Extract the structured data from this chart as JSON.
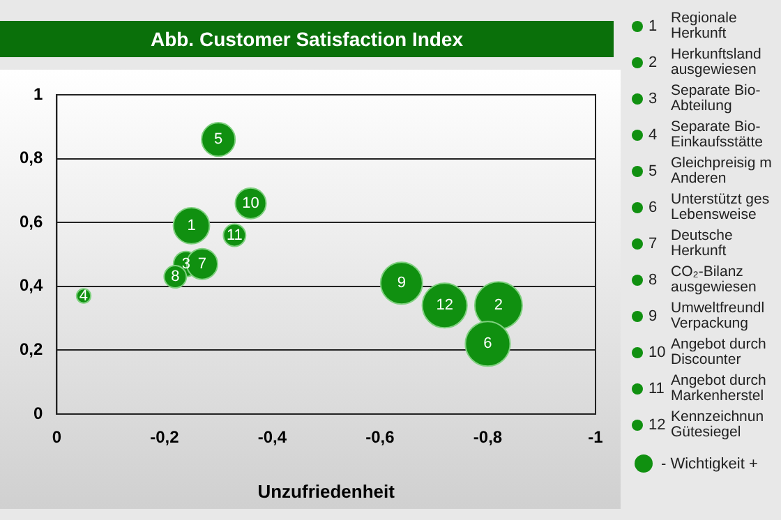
{
  "chart_data": {
    "type": "bubble",
    "title": "Abb. Customer Satisfaction Index",
    "xlabel": "Unzufriedenheit",
    "xlim": [
      0,
      -1
    ],
    "xticks": [
      0,
      {
        "value": -0.2,
        "label": "-0,2"
      },
      {
        "value": -0.4,
        "label": "-0,4"
      },
      {
        "value": -0.6,
        "label": "-0,6"
      },
      {
        "value": -0.8,
        "label": "-0,8"
      },
      -1
    ],
    "ylim": [
      0,
      1
    ],
    "yticks": [
      0,
      {
        "value": 0.2,
        "label": "0,2"
      },
      {
        "value": 0.4,
        "label": "0,4"
      },
      {
        "value": 0.6,
        "label": "0,6"
      },
      {
        "value": 0.8,
        "label": "0,8"
      },
      1
    ],
    "grid": "y",
    "series": [
      {
        "color": "#109010",
        "x": [
          -0.25,
          -0.82,
          -0.24,
          -0.05,
          -0.3,
          -0.8,
          -0.27,
          -0.22,
          -0.64,
          -0.36,
          -0.33,
          -0.72
        ],
        "values": [
          0.59,
          0.34,
          0.47,
          0.37,
          0.86,
          0.22,
          0.47,
          0.43,
          0.41,
          0.66,
          0.56,
          0.34
        ],
        "sizes": [
          0.58,
          1,
          0.28,
          0.09,
          0.5,
          0.89,
          0.42,
          0.22,
          0.78,
          0.42,
          0.22,
          0.89
        ]
      }
    ],
    "annotations": [
      {
        "text": "1",
        "x": -0.25,
        "y": 0.59
      },
      {
        "text": "2",
        "x": -0.82,
        "y": 0.34
      },
      {
        "text": "3",
        "x": -0.24,
        "y": 0.47
      },
      {
        "text": "4",
        "x": -0.05,
        "y": 0.37
      },
      {
        "text": "5",
        "x": -0.3,
        "y": 0.86
      },
      {
        "text": "6",
        "x": -0.8,
        "y": 0.22
      },
      {
        "text": "7",
        "x": -0.27,
        "y": 0.47
      },
      {
        "text": "8",
        "x": -0.22,
        "y": 0.43
      },
      {
        "text": "9",
        "x": -0.64,
        "y": 0.41
      },
      {
        "text": "10",
        "x": -0.36,
        "y": 0.66
      },
      {
        "text": "11",
        "x": -0.33,
        "y": 0.56
      },
      {
        "text": "12",
        "x": -0.72,
        "y": 0.34
      },
      "Regionale Herkunft",
      "Herkunftsland ausgewiesen",
      "Separate Bio-Abteilung",
      "Separate Bio-Einkaufsstätte",
      "Gleichpreisig m Anderen",
      "Unterstützt ges Lebensweise",
      "Deutsche Herkunft",
      "CO₂-Bilanz ausgewiesen",
      "Umweltfreundl Verpackung",
      "Angebot durch Discounter",
      "Angebot durch Markenherstel",
      "Kennzeichnun Gütesiegel",
      "- Wichtigkeit +"
    ]
  }
}
